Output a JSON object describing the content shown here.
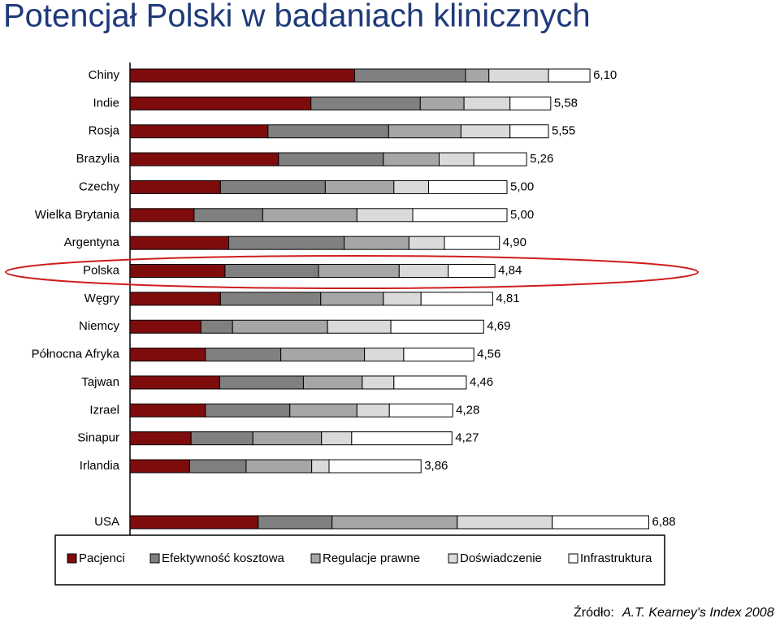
{
  "chart_data": {
    "type": "stacked-barh",
    "title": "Potencjał Polski w badaniach klinicznych",
    "categories": [
      "Chiny",
      "Indie",
      "Rosja",
      "Brazylia",
      "Czechy",
      "Wielka Brytania",
      "Argentyna",
      "Polska",
      "Węgry",
      "Niemcy",
      "Północna Afryka",
      "Tajwan",
      "Izrael",
      "Sinapur",
      "Irlandia",
      "USA"
    ],
    "series": [
      {
        "name": "Pacjenci",
        "color": "#7f0c0c",
        "values": [
          2.98,
          2.4,
          1.83,
          1.97,
          1.2,
          0.85,
          1.31,
          1.26,
          1.2,
          0.94,
          1.0,
          1.19,
          1.0,
          0.81,
          0.79,
          1.7
        ]
      },
      {
        "name": "Efektywność kosztowa",
        "color": "#808080",
        "values": [
          1.47,
          1.45,
          1.6,
          1.39,
          1.39,
          0.91,
          1.53,
          1.24,
          1.33,
          0.42,
          1.0,
          1.11,
          1.12,
          0.82,
          0.75,
          0.98
        ]
      },
      {
        "name": "Regulacje prawne",
        "color": "#a6a6a6",
        "values": [
          0.31,
          0.58,
          0.96,
          0.74,
          0.91,
          1.25,
          0.86,
          1.07,
          0.83,
          1.26,
          1.11,
          0.78,
          0.89,
          0.91,
          0.87,
          1.66
        ]
      },
      {
        "name": "Doświadczenie",
        "color": "#dadada",
        "values": [
          0.79,
          0.61,
          0.65,
          0.46,
          0.46,
          0.74,
          0.47,
          0.65,
          0.5,
          0.84,
          0.52,
          0.42,
          0.43,
          0.4,
          0.23,
          1.26
        ]
      },
      {
        "name": "Infrastruktura",
        "color": "#ffffff",
        "values": [
          0.55,
          0.54,
          0.51,
          0.7,
          1.04,
          1.25,
          0.73,
          0.62,
          0.95,
          1.23,
          0.93,
          0.96,
          0.84,
          1.33,
          1.22,
          1.28
        ]
      }
    ],
    "totals": [
      6.1,
      5.58,
      5.55,
      5.26,
      5.0,
      5.0,
      4.9,
      4.84,
      4.81,
      4.69,
      4.56,
      4.46,
      4.28,
      4.27,
      3.86,
      6.88
    ],
    "total_labels": [
      "6,10",
      "5,58",
      "5,55",
      "5,26",
      "5,00",
      "5,00",
      "4,90",
      "4,84",
      "4,81",
      "4,69",
      "4,56",
      "4,46",
      "4,28",
      "4,27",
      "3,86",
      "6,88"
    ],
    "source_label": "Źródło:",
    "source": "A.T. Kearney's Index 2008"
  }
}
